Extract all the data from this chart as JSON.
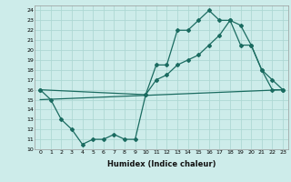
{
  "xlabel": "Humidex (Indice chaleur)",
  "bg_color": "#cdecea",
  "grid_color": "#aed8d4",
  "line_color": "#1a6b60",
  "xlim": [
    -0.5,
    23.5
  ],
  "ylim": [
    10,
    24.5
  ],
  "yticks": [
    10,
    11,
    12,
    13,
    14,
    15,
    16,
    17,
    18,
    19,
    20,
    21,
    22,
    23,
    24
  ],
  "xticks": [
    0,
    1,
    2,
    3,
    4,
    5,
    6,
    7,
    8,
    9,
    10,
    11,
    12,
    13,
    14,
    15,
    16,
    17,
    18,
    19,
    20,
    21,
    22,
    23
  ],
  "line1_x": [
    0,
    1,
    2,
    3,
    4,
    5,
    6,
    7,
    8,
    9,
    10,
    11,
    12,
    13,
    14,
    15,
    16,
    17,
    18,
    19,
    20,
    21,
    22,
    23
  ],
  "line1_y": [
    16,
    15,
    13,
    12,
    10.5,
    11,
    11,
    11.5,
    11,
    11,
    15.5,
    18.5,
    18.5,
    22,
    22,
    23,
    24,
    23,
    23,
    22.5,
    20.5,
    18,
    17,
    16
  ],
  "line2_x": [
    0,
    10,
    11,
    12,
    13,
    14,
    15,
    16,
    17,
    18,
    19,
    20,
    21,
    22,
    23
  ],
  "line2_y": [
    16,
    15.5,
    17,
    17.5,
    18.5,
    19,
    19.5,
    20.5,
    21.5,
    23,
    20.5,
    20.5,
    18,
    16,
    16
  ],
  "line3_x": [
    0,
    23
  ],
  "line3_y": [
    15,
    16
  ]
}
